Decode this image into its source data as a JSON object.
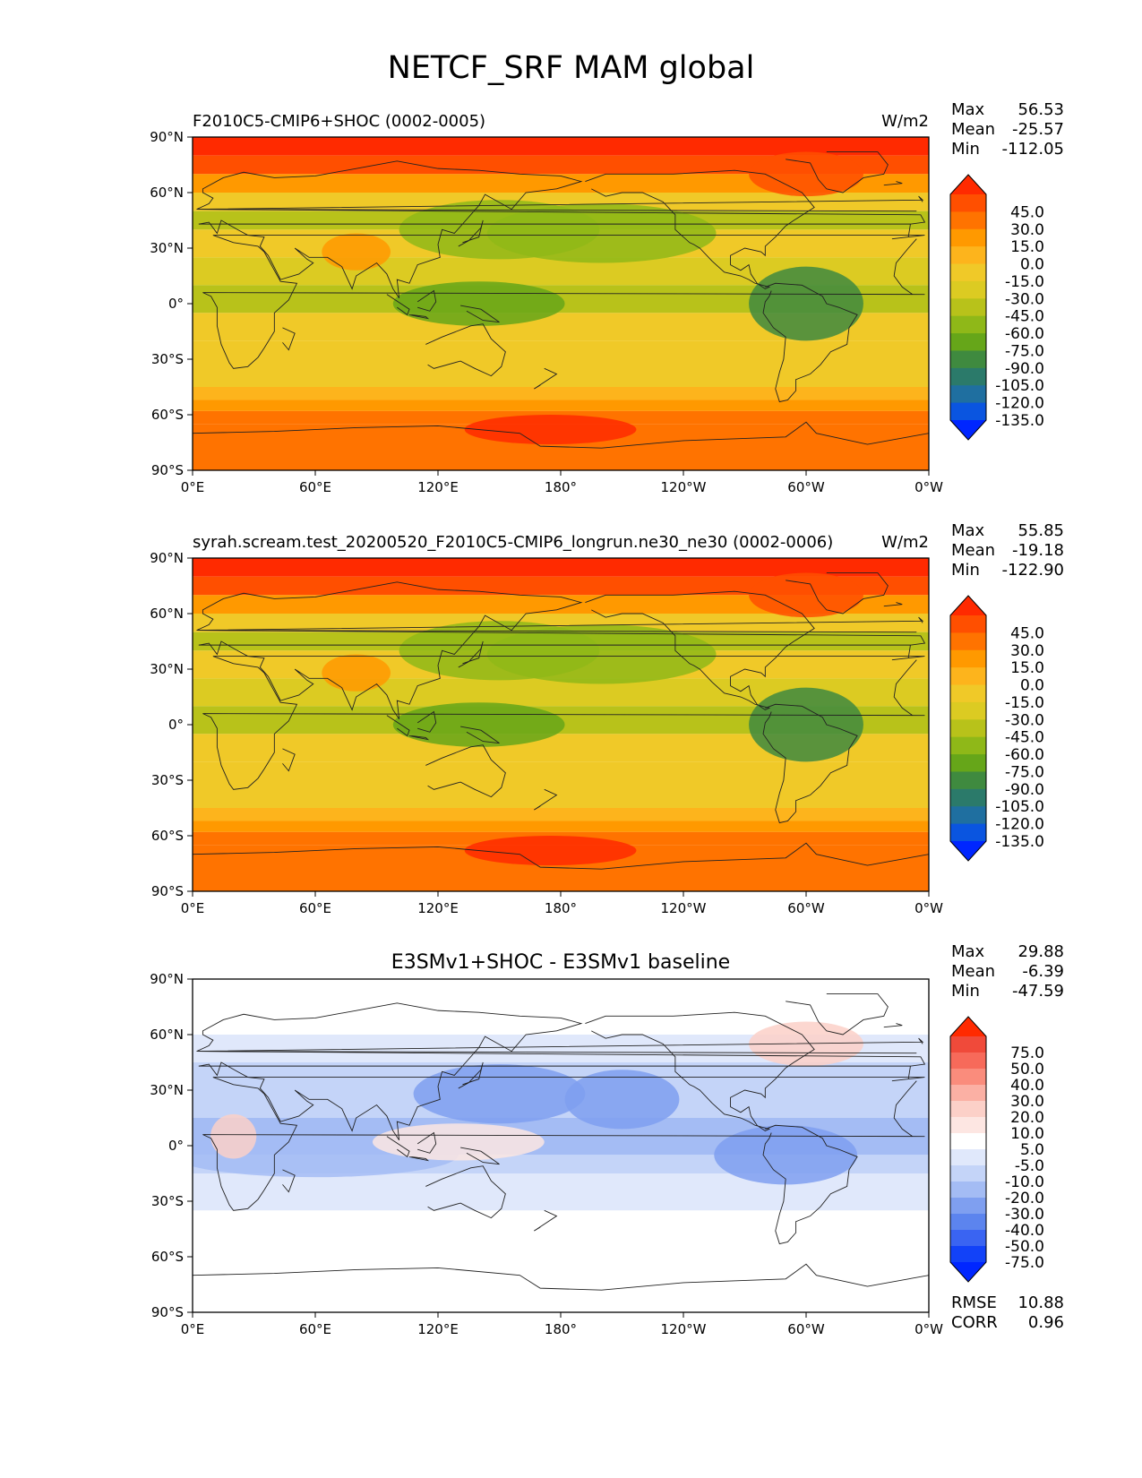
{
  "figure": {
    "title": "NETCF_SRF MAM global"
  },
  "x_ticks": [
    "0°E",
    "60°E",
    "120°E",
    "180°",
    "120°W",
    "60°W",
    "0°W"
  ],
  "y_ticks": [
    "90°N",
    "60°N",
    "30°N",
    "0°",
    "30°S",
    "60°S",
    "90°S"
  ],
  "chart_data": [
    {
      "type": "heatmap",
      "panel": "test",
      "title_left": "F2010C5-CMIP6+SHOC (0002-0005)",
      "title_center": "",
      "title_right": "W/m2",
      "stats": [
        {
          "label": "Max",
          "value": "56.53"
        },
        {
          "label": "Mean",
          "value": "-25.57"
        },
        {
          "label": "Min",
          "value": "-112.05"
        }
      ],
      "xlim": [
        0,
        360
      ],
      "ylim": [
        -90,
        90
      ],
      "colorbar": {
        "extend": "both",
        "labels": [
          "45.0",
          "30.0",
          "15.0",
          "0.0",
          "-15.0",
          "-30.0",
          "-45.0",
          "-60.0",
          "-75.0",
          "-90.0",
          "-105.0",
          "-120.0",
          "-135.0"
        ],
        "colors": [
          "#ff2a00",
          "#ff4f00",
          "#ff7300",
          "#ff9900",
          "#fdb41c",
          "#f0c928",
          "#dccb22",
          "#b8c21a",
          "#8fb818",
          "#66a619",
          "#3f8a3f",
          "#2b7a6a",
          "#1f6fa0",
          "#0a55e0",
          "#0026ff"
        ]
      }
    },
    {
      "type": "heatmap",
      "panel": "reference",
      "title_left": "syrah.scream.test_20200520_F2010C5-CMIP6_longrun.ne30_ne30 (0002-0006)",
      "title_center": "",
      "title_right": "W/m2",
      "stats": [
        {
          "label": "Max",
          "value": "55.85"
        },
        {
          "label": "Mean",
          "value": "-19.18"
        },
        {
          "label": "Min",
          "value": "-122.90"
        }
      ],
      "xlim": [
        0,
        360
      ],
      "ylim": [
        -90,
        90
      ],
      "colorbar": {
        "extend": "both",
        "labels": [
          "45.0",
          "30.0",
          "15.0",
          "0.0",
          "-15.0",
          "-30.0",
          "-45.0",
          "-60.0",
          "-75.0",
          "-90.0",
          "-105.0",
          "-120.0",
          "-135.0"
        ],
        "colors": [
          "#ff2a00",
          "#ff4f00",
          "#ff7300",
          "#ff9900",
          "#fdb41c",
          "#f0c928",
          "#dccb22",
          "#b8c21a",
          "#8fb818",
          "#66a619",
          "#3f8a3f",
          "#2b7a6a",
          "#1f6fa0",
          "#0a55e0",
          "#0026ff"
        ]
      }
    },
    {
      "type": "heatmap",
      "panel": "difference",
      "title_left": "",
      "title_center": "E3SMv1+SHOC - E3SMv1 baseline",
      "title_right": "",
      "stats": [
        {
          "label": "Max",
          "value": "29.88"
        },
        {
          "label": "Mean",
          "value": "-6.39"
        },
        {
          "label": "Min",
          "value": "-47.59"
        }
      ],
      "extra_stats": [
        {
          "label": "RMSE",
          "value": "10.88"
        },
        {
          "label": "CORR",
          "value": "0.96"
        }
      ],
      "xlim": [
        0,
        360
      ],
      "ylim": [
        -90,
        90
      ],
      "colorbar": {
        "extend": "both",
        "labels": [
          "75.0",
          "50.0",
          "40.0",
          "30.0",
          "20.0",
          "10.0",
          "5.0",
          "-5.0",
          "-10.0",
          "-20.0",
          "-30.0",
          "-40.0",
          "-50.0",
          "-75.0"
        ],
        "colors": [
          "#ff2a00",
          "#f04a3a",
          "#f76a5a",
          "#fa8c7c",
          "#fbb0a4",
          "#fcd0c8",
          "#fde6e2",
          "#ffffff",
          "#e0e8fb",
          "#c4d4f8",
          "#a4bcf4",
          "#7f9ff0",
          "#5c84ee",
          "#3a64f2",
          "#1242f8",
          "#0026ff"
        ]
      }
    }
  ]
}
